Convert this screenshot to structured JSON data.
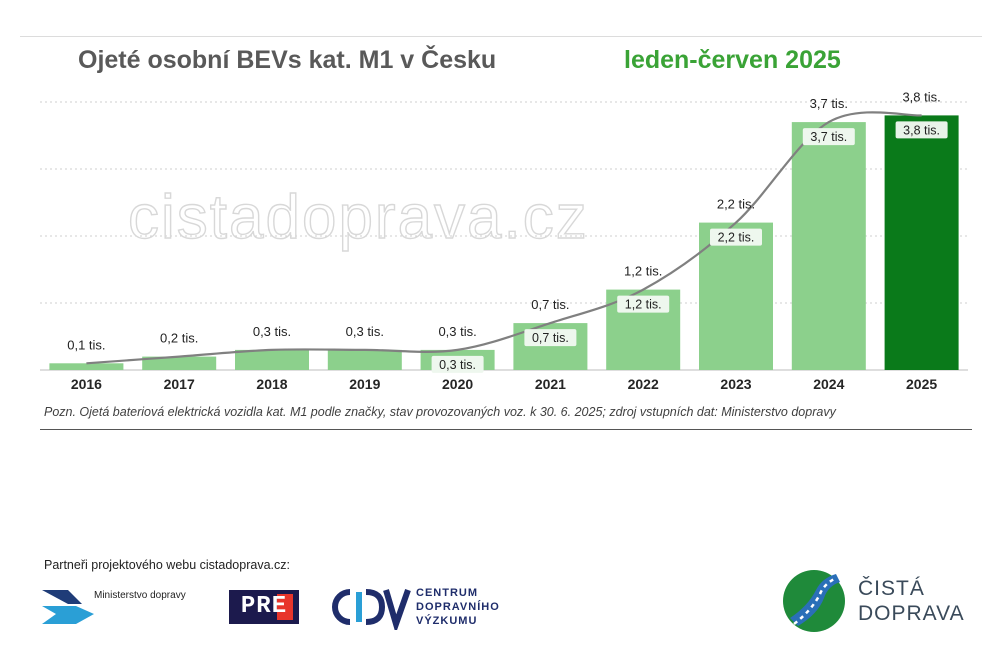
{
  "header": {
    "title": "Ojeté osobní BEVs kat. M1 v Česku",
    "period": "leden-červen 2025"
  },
  "watermark": "cistadoprava.cz",
  "chart_data": {
    "type": "bar",
    "title": "Ojeté osobní BEVs kat. M1 v Česku",
    "subtitle": "leden-červen 2025",
    "categories": [
      "2016",
      "2017",
      "2018",
      "2019",
      "2020",
      "2021",
      "2022",
      "2023",
      "2024",
      "2025"
    ],
    "values": [
      0.1,
      0.2,
      0.3,
      0.3,
      0.3,
      0.7,
      1.2,
      2.2,
      3.7,
      3.8
    ],
    "unit_suffix": " tis.",
    "data_labels": [
      "0,1 tis.",
      "0,2 tis.",
      "0,3 tis.",
      "0,3 tis.",
      "0,3 tis.",
      "0,7 tis.",
      "1,2 tis.",
      "2,2 tis.",
      "3,7 tis.",
      "3,8 tis."
    ],
    "ylim": [
      0,
      4
    ],
    "grid": true,
    "trend_line": true,
    "colors": {
      "bar": "#8cd08c",
      "bar_highlight": "#0a7a1a",
      "trend": "#808080",
      "inner_label_bg": "#eef7ee"
    },
    "xlabel": "",
    "ylabel": ""
  },
  "note": "Pozn. Ojetá bateriová elektrická vozidla kat. M1 podle značky, stav provozovaných voz. k 30. 6. 2025; zdroj vstupních dat: Ministerstvo dopravy",
  "partners": {
    "label": "Partneři projektového webu cistadoprava.cz:",
    "logos": [
      {
        "text": "Ministerstvo dopravy"
      },
      {
        "text": "PRE"
      },
      {
        "text": "CENTRUM\nDOPRAVNÍHO\nVÝZKUMU"
      }
    ]
  },
  "brand": {
    "text": "ČISTÁ\nDOPRAVA"
  }
}
